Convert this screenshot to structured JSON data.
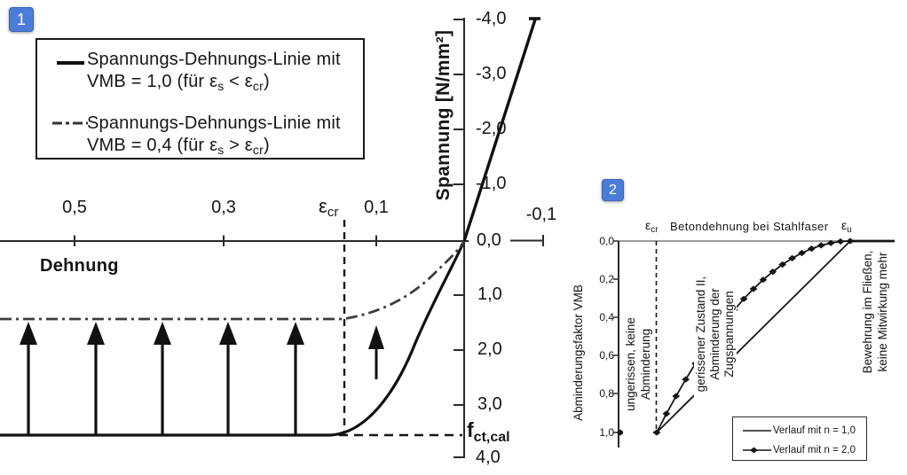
{
  "badges": {
    "one": "1",
    "two": "2"
  },
  "chart1": {
    "ylabel": "Spannung [N/mm²]",
    "xlabel": "Dehnung",
    "y_ticks": [
      "-4,0",
      "-3,0",
      "-2,0",
      "-1,0",
      "0,0",
      "1,0",
      "2,0",
      "3,0",
      "4,0"
    ],
    "x_tick_05": "0,5",
    "x_tick_03": "0,3",
    "x_tick_01": "0,1",
    "x_tick_m01": "-0,1",
    "eps": "ε",
    "sub_cr": "cr",
    "sub_s": "s",
    "fct_main": "f",
    "fct_sub": "ct,cal",
    "legend": {
      "item1_line1": "Spannungs-Dehnungs-Linie mit",
      "item1_vmb": "VMB = 1,0 (für ",
      "item1_rel": " < ",
      "item2_line1": "Spannungs-Dehnungs-Linie mit",
      "item2_vmb": "VMB = 0,4 (für ",
      "item2_rel": " > ",
      "close_paren": ")"
    }
  },
  "chart2": {
    "ylabel": "Abminderungsfaktor VMB",
    "top_axis_label": "Betondehnung bei Stahlfaser",
    "eps": "ε",
    "sub_cr": "cr",
    "sub_u": "u",
    "y_ticks": [
      "0,0",
      "0,2",
      "0,4",
      "0,6",
      "0,8",
      "1,0"
    ],
    "annotation_uncracked_l1": "ungerissen, keine",
    "annotation_uncracked_l2": "Abminderung",
    "annotation_cracked_l1": "gerissener Zustand II,",
    "annotation_cracked_l2": "Abminderung der",
    "annotation_cracked_l3": "Zugspannungen",
    "annotation_yield_l1": "Bewehrung im Fließen,",
    "annotation_yield_l2": "keine Mitwirkung mehr",
    "legend": {
      "item1": "Verlauf mit n = 1,0",
      "item2": "Verlauf mit n = 2,0"
    }
  },
  "chart_data": [
    {
      "id": 1,
      "type": "line",
      "title": "",
      "xlabel": "Dehnung",
      "ylabel": "Spannung [N/mm²]",
      "axis_notes": "positive strain plotted to the left, tensile stress plotted downward",
      "x_ticks": [
        0.5,
        0.3,
        0.1,
        -0.1
      ],
      "y_ticks": [
        -4.0,
        -3.0,
        -2.0,
        -1.0,
        0.0,
        1.0,
        2.0,
        3.0,
        4.0
      ],
      "eps_cr": 0.15,
      "f_ct_cal": 3.55,
      "series": [
        {
          "name": "Spannungs-Dehnungs-Linie mit VMB = 1,0 (für εs < εcr)",
          "style": "solid",
          "points": [
            [
              -0.097,
              -3.94
            ],
            [
              0,
              0
            ],
            [
              0.05,
              1.55
            ],
            [
              0.08,
              2.4
            ],
            [
              0.11,
              3.15
            ],
            [
              0.15,
              3.55
            ],
            [
              0.59,
              3.55
            ]
          ]
        },
        {
          "name": "Spannungs-Dehnungs-Linie mit VMB = 0,4 (für εs > εcr)",
          "style": "dash-dot",
          "points": [
            [
              0,
              0
            ],
            [
              0.05,
              0.62
            ],
            [
              0.08,
              1.05
            ],
            [
              0.11,
              1.3
            ],
            [
              0.15,
              1.42
            ],
            [
              0.59,
              1.42
            ]
          ]
        }
      ],
      "annotations": [
        "εcr dashed vertical line",
        "fct,cal dashed horizontal line",
        "upward arrows from VMB=1,0 plateau to VMB=0,4 plateau"
      ]
    },
    {
      "id": 2,
      "type": "line",
      "title": "",
      "xlabel": "Betondehnung bei Stahlfaser",
      "ylabel": "Abminderungsfaktor VMB",
      "axis_notes": "VMB axis runs 0,0 (top) to 1,0 (bottom); t = (ε − εcr)/(εu − εcr)",
      "x_markers": [
        "εcr",
        "εu"
      ],
      "y_ticks": [
        0.0,
        0.2,
        0.4,
        0.6,
        0.8,
        1.0
      ],
      "regions": [
        "ungerissen, keine Abminderung",
        "gerissener Zustand II, Abminderung der Zugspannungen",
        "Bewehrung im Fließen, keine Mitwirkung mehr"
      ],
      "series": [
        {
          "name": "Verlauf mit n = 1,0",
          "style": "solid",
          "points": [
            [
              0,
              1
            ],
            [
              1,
              0
            ]
          ]
        },
        {
          "name": "Verlauf mit n = 2,0",
          "style": "solid-diamond-markers",
          "points": [
            [
              0,
              1
            ],
            [
              0.05,
              0.9025
            ],
            [
              0.1,
              0.81
            ],
            [
              0.15,
              0.7225
            ],
            [
              0.2,
              0.64
            ],
            [
              0.25,
              0.5625
            ],
            [
              0.3,
              0.49
            ],
            [
              0.35,
              0.4225
            ],
            [
              0.4,
              0.36
            ],
            [
              0.45,
              0.3025
            ],
            [
              0.5,
              0.25
            ],
            [
              0.55,
              0.2025
            ],
            [
              0.6,
              0.16
            ],
            [
              0.65,
              0.1225
            ],
            [
              0.7,
              0.09
            ],
            [
              0.75,
              0.0625
            ],
            [
              0.8,
              0.04
            ],
            [
              0.85,
              0.0225
            ],
            [
              0.9,
              0.01
            ],
            [
              0.95,
              0.0025
            ],
            [
              1,
              0
            ]
          ]
        }
      ]
    }
  ]
}
